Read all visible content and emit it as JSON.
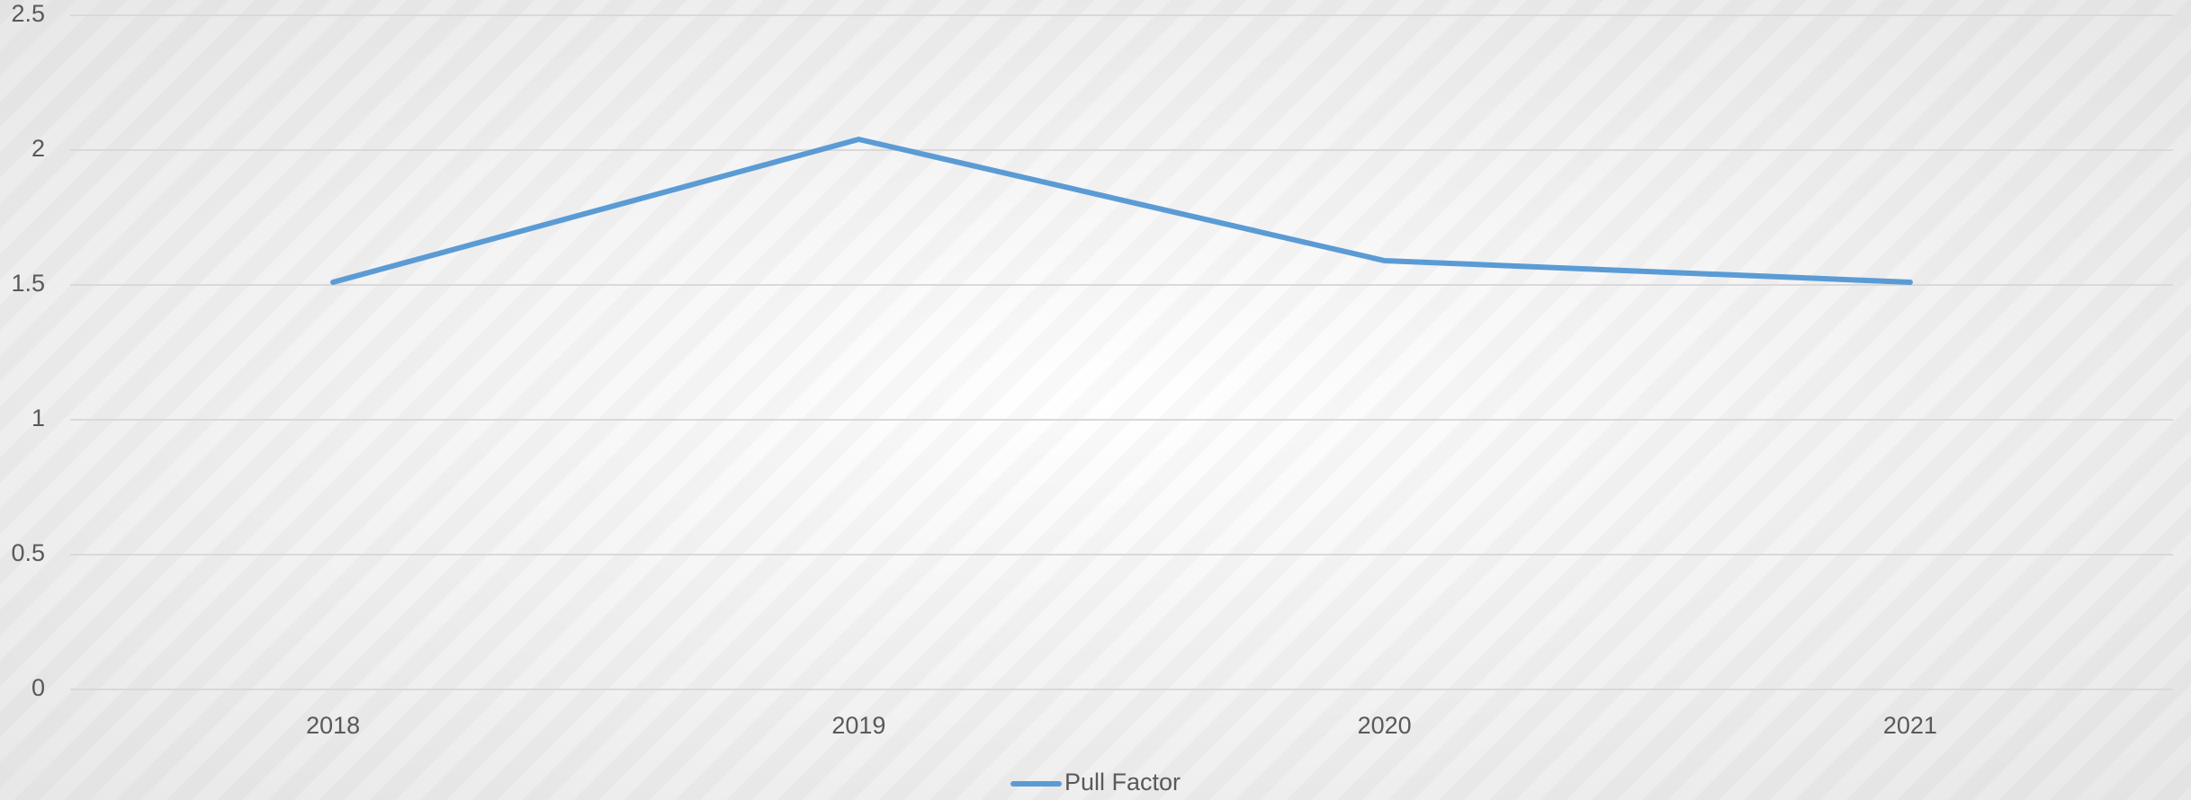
{
  "chart_data": {
    "type": "line",
    "categories": [
      "2018",
      "2019",
      "2020",
      "2021"
    ],
    "series": [
      {
        "name": "Pull Factor",
        "color": "#5b9bd5",
        "values": [
          1.51,
          2.04,
          1.59,
          1.51
        ]
      }
    ],
    "ylim": [
      0,
      2.5
    ],
    "yticks": [
      0,
      0.5,
      1,
      1.5,
      2,
      2.5
    ],
    "grid": true,
    "legend": "bottom"
  }
}
